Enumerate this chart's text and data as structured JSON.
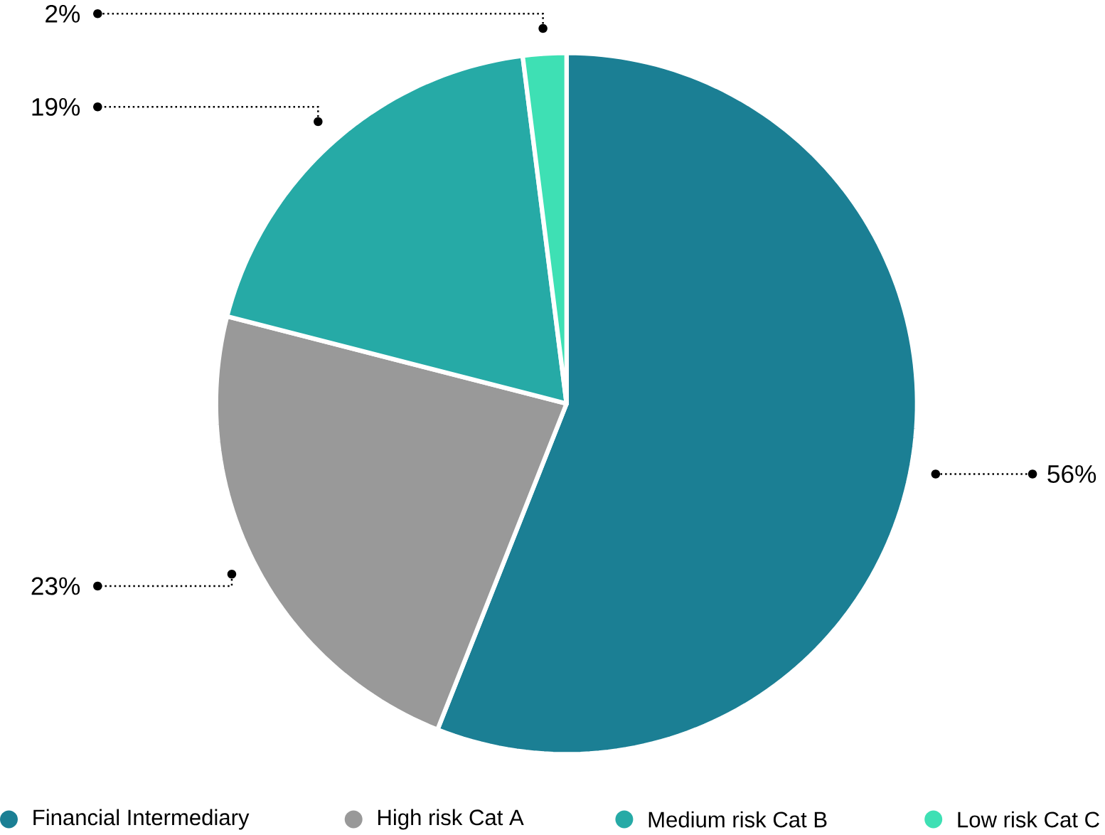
{
  "chart_data": {
    "type": "pie",
    "categories": [
      "Financial Intermediary",
      "High risk Cat A",
      "Medium risk Cat B",
      "Low risk Cat C"
    ],
    "values": [
      56,
      23,
      19,
      2
    ],
    "value_labels": [
      "56%",
      "23%",
      "19%",
      "2%"
    ],
    "colors": [
      "#1b7f94",
      "#999999",
      "#26aaa6",
      "#3ee0b4"
    ],
    "legend": "bottom"
  }
}
